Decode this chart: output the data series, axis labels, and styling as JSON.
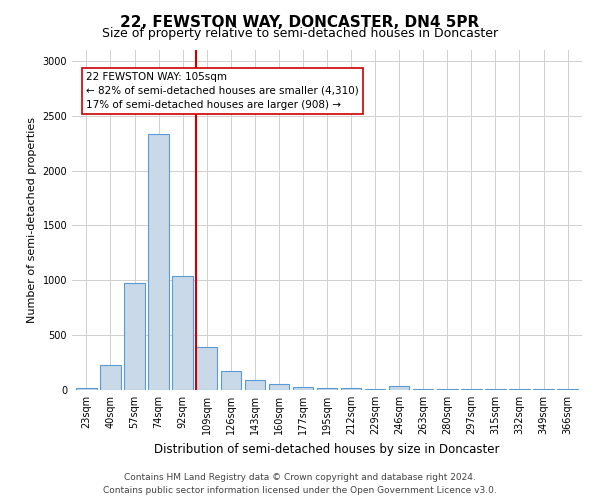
{
  "title": "22, FEWSTON WAY, DONCASTER, DN4 5PR",
  "subtitle": "Size of property relative to semi-detached houses in Doncaster",
  "xlabel": "Distribution of semi-detached houses by size in Doncaster",
  "ylabel": "Number of semi-detached properties",
  "footer_line1": "Contains HM Land Registry data © Crown copyright and database right 2024.",
  "footer_line2": "Contains public sector information licensed under the Open Government Licence v3.0.",
  "bar_labels": [
    "23sqm",
    "40sqm",
    "57sqm",
    "74sqm",
    "92sqm",
    "109sqm",
    "126sqm",
    "143sqm",
    "160sqm",
    "177sqm",
    "195sqm",
    "212sqm",
    "229sqm",
    "246sqm",
    "263sqm",
    "280sqm",
    "297sqm",
    "315sqm",
    "332sqm",
    "349sqm",
    "366sqm"
  ],
  "bar_values": [
    20,
    230,
    980,
    2330,
    1040,
    390,
    170,
    90,
    55,
    30,
    20,
    15,
    10,
    35,
    10,
    10,
    10,
    5,
    5,
    5,
    5
  ],
  "bar_color": "#c9d9e8",
  "bar_edge_color": "#5b9bd5",
  "vline_x_index": 5,
  "vline_color": "#cc0000",
  "annotation_text": "22 FEWSTON WAY: 105sqm\n← 82% of semi-detached houses are smaller (4,310)\n17% of semi-detached houses are larger (908) →",
  "annotation_box_edge_color": "#cc0000",
  "annotation_fontsize": 7.5,
  "title_fontsize": 11,
  "subtitle_fontsize": 9,
  "xlabel_fontsize": 8.5,
  "ylabel_fontsize": 8,
  "tick_fontsize": 7,
  "ylim": [
    0,
    3100
  ],
  "yticks": [
    0,
    500,
    1000,
    1500,
    2000,
    2500,
    3000
  ],
  "background_color": "#ffffff",
  "grid_color": "#d0d0d0",
  "footer_fontsize": 6.5
}
